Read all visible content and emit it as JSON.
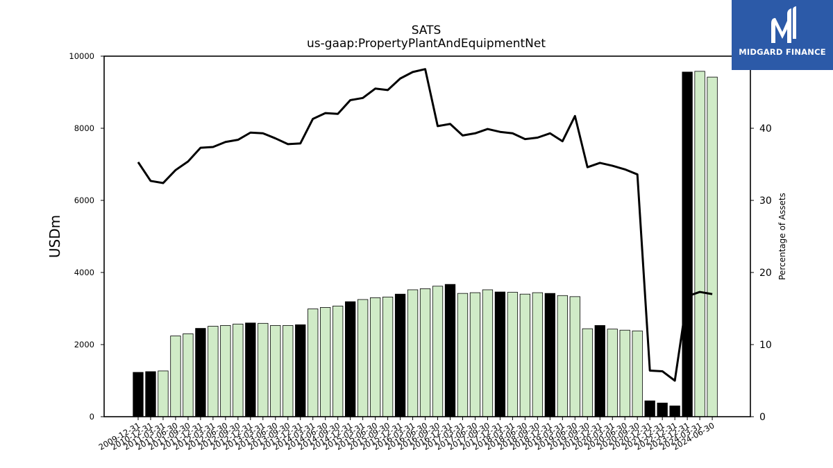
{
  "chart_data": {
    "type": "bar",
    "title": "SATS",
    "subtitle": "us-gaap:PropertyPlantAndEquipmentNet",
    "ylabel": "USDm",
    "y2label": "Percentage of Assets",
    "ylim": [
      0,
      10000
    ],
    "y2lim": [
      0,
      50
    ],
    "yticks": [
      0,
      2000,
      4000,
      6000,
      8000,
      10000
    ],
    "y2ticks": [
      0,
      10,
      20,
      30,
      40
    ],
    "grid": false,
    "categories": [
      "2009-12-31",
      "2010-12-31",
      "2011-03-31",
      "2011-06-30",
      "2011-09-30",
      "2011-12-31",
      "2012-03-31",
      "2012-06-30",
      "2012-09-30",
      "2012-12-31",
      "2013-03-31",
      "2013-06-30",
      "2013-09-30",
      "2013-12-31",
      "2014-03-31",
      "2014-06-30",
      "2014-09-30",
      "2014-12-31",
      "2015-03-31",
      "2015-06-30",
      "2015-09-30",
      "2015-12-31",
      "2016-03-31",
      "2016-06-30",
      "2016-09-30",
      "2016-12-31",
      "2017-03-31",
      "2017-06-30",
      "2017-09-30",
      "2017-12-31",
      "2018-03-31",
      "2018-06-30",
      "2018-09-30",
      "2018-12-31",
      "2019-03-31",
      "2019-06-30",
      "2019-09-30",
      "2019-12-31",
      "2020-03-31",
      "2020-06-30",
      "2020-09-30",
      "2020-12-31",
      "2021-12-31",
      "2022-12-31",
      "2023-12-31",
      "2024-03-31",
      "2024-06-30"
    ],
    "series": [
      {
        "kind": "bar",
        "values": [
          1230,
          1250,
          1270,
          2240,
          2300,
          2450,
          2510,
          2530,
          2570,
          2600,
          2590,
          2530,
          2530,
          2550,
          2990,
          3030,
          3070,
          3190,
          3250,
          3300,
          3320,
          3400,
          3520,
          3550,
          3620,
          3670,
          3420,
          3440,
          3520,
          3460,
          3450,
          3400,
          3440,
          3420,
          3360,
          3330,
          2440,
          2530,
          2430,
          2400,
          2380,
          440,
          380,
          300,
          9560,
          9580,
          9420
        ],
        "annual": [
          true,
          true,
          false,
          false,
          false,
          true,
          false,
          false,
          false,
          true,
          false,
          false,
          false,
          true,
          false,
          false,
          false,
          true,
          false,
          false,
          false,
          true,
          false,
          false,
          false,
          true,
          false,
          false,
          false,
          true,
          false,
          false,
          false,
          true,
          false,
          false,
          false,
          true,
          false,
          false,
          false,
          true,
          true,
          true,
          true,
          false,
          false
        ]
      },
      {
        "kind": "line",
        "axis": "right",
        "values": [
          35.3,
          32.7,
          32.4,
          34.2,
          35.4,
          37.3,
          37.4,
          38.1,
          38.4,
          39.4,
          39.3,
          38.6,
          37.8,
          37.9,
          41.3,
          42.1,
          42.0,
          43.9,
          44.2,
          45.5,
          45.3,
          46.9,
          47.8,
          48.2,
          40.3,
          40.6,
          39.0,
          39.3,
          39.9,
          39.5,
          39.3,
          38.5,
          38.7,
          39.3,
          38.2,
          41.7,
          34.6,
          35.2,
          34.8,
          34.3,
          33.6,
          6.4,
          6.3,
          5.0,
          16.7,
          17.3,
          17.0
        ]
      }
    ],
    "colors": {
      "annual_bar": "#000000",
      "quarter_bar": "#d0ebc7",
      "bar_edge": "#000000",
      "line": "#000000"
    }
  },
  "logo": {
    "text": "MIDGARD FINANCE",
    "background": "#2c5aa8"
  }
}
